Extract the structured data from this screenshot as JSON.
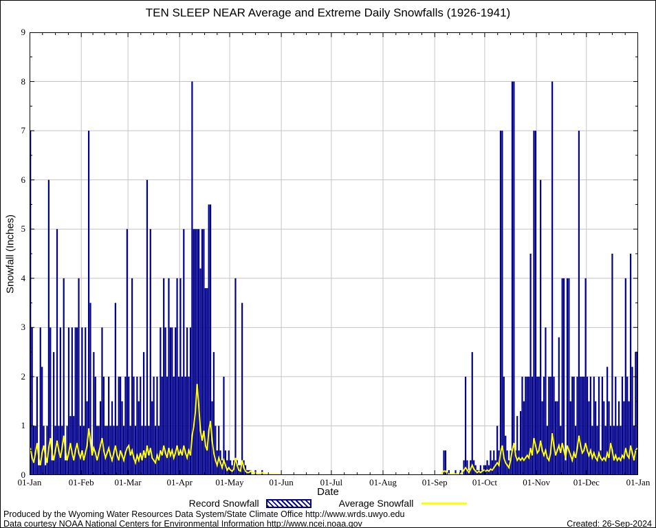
{
  "colors": {
    "bar": "#00008B",
    "average_line": "#FFFF00",
    "grid": "#C4C4C4",
    "axis": "#000000",
    "background": "#FFFFFF",
    "text": "#000000"
  },
  "footer": {
    "line1": "Produced by the Wyoming Water Resources Data System/State Climate Office http://www.wrds.uwyo.edu",
    "line2": "Data courtesy NOAA National Centers for Environmental Information http://www.ncei.noaa.gov",
    "created": "Created: 26-Sep-2024"
  },
  "chart_data": {
    "type": "bar",
    "title": "TEN SLEEP NEAR Average and Extreme Daily Snowfalls (1926-1941)",
    "xlabel": "Date",
    "ylabel": "Snowfall (Inches)",
    "ylim": [
      0,
      9
    ],
    "y_ticks": [
      0,
      1,
      2,
      3,
      4,
      5,
      6,
      7,
      8,
      9
    ],
    "x_tick_labels": [
      "01-Jan",
      "01-Feb",
      "01-Mar",
      "01-Apr",
      "01-May",
      "01-Jun",
      "01-Jul",
      "01-Aug",
      "01-Sep",
      "01-Oct",
      "01-Nov",
      "01-Dec",
      "01-Jan"
    ],
    "month_start_days": [
      0,
      31,
      59,
      90,
      120,
      151,
      181,
      212,
      243,
      273,
      304,
      334,
      365
    ],
    "days_in_year": 365,
    "grid": true,
    "legend_position": "bottom",
    "series": [
      {
        "name": "Record Snowfall",
        "type": "bar",
        "color": "#00008B",
        "values": [
          7,
          3,
          1,
          1,
          2,
          0.2,
          3,
          2.2,
          1,
          0.2,
          1,
          6,
          3,
          0.3,
          2.5,
          1,
          5,
          1,
          3,
          1,
          4,
          0.3,
          1,
          3,
          1.2,
          3,
          1.2,
          3,
          3,
          4,
          1,
          3,
          1,
          3,
          1.5,
          7,
          3.5,
          0.5,
          2.5,
          2,
          1,
          1,
          1.5,
          3,
          2,
          1,
          1,
          2,
          1,
          1.5,
          1,
          3.5,
          1,
          2,
          2,
          1.5,
          1,
          2,
          5,
          2,
          1,
          4,
          2,
          1,
          2,
          1.5,
          2,
          1,
          2.5,
          1,
          6,
          1,
          5,
          1.5,
          2,
          1,
          2,
          1,
          3,
          2,
          4,
          3,
          2,
          4,
          3,
          3,
          2,
          3,
          4,
          2,
          4,
          2,
          5,
          2,
          3,
          2,
          3,
          8,
          5,
          5,
          5,
          5,
          4.2,
          5,
          5,
          3.8,
          3.8,
          5.5,
          5.5,
          1.5,
          2.5,
          1,
          0.5,
          1,
          0.5,
          0.3,
          2,
          0.5,
          0.3,
          0.5,
          0.3,
          0.2,
          0.3,
          4,
          0.3,
          0.2,
          0.2,
          3.5,
          0.3,
          0.2,
          0.1,
          0.1,
          0.1,
          0,
          0,
          0.1,
          0,
          0,
          0,
          0.1,
          0,
          0,
          0,
          0,
          0,
          0,
          0,
          0,
          0,
          0,
          0,
          0,
          0,
          0,
          0,
          0,
          0,
          0,
          0,
          0,
          0,
          0,
          0,
          0,
          0,
          0,
          0,
          0,
          0,
          0,
          0,
          0,
          0,
          0,
          0,
          0,
          0,
          0,
          0,
          0,
          0,
          0,
          0,
          0,
          0,
          0,
          0,
          0,
          0,
          0,
          0,
          0,
          0,
          0,
          0,
          0,
          0,
          0,
          0,
          0,
          0,
          0,
          0,
          0,
          0,
          0,
          0,
          0,
          0,
          0,
          0,
          0,
          0,
          0,
          0,
          0,
          0,
          0,
          0,
          0,
          0,
          0,
          0,
          0,
          0,
          0,
          0,
          0,
          0,
          0,
          0,
          0,
          0,
          0,
          0,
          0,
          0,
          0,
          0,
          0,
          0,
          0,
          0,
          0,
          0,
          0,
          0,
          0,
          0.5,
          0.5,
          0,
          0.1,
          0,
          0,
          0,
          0.1,
          0,
          0,
          0.1,
          0,
          0.3,
          2,
          0.3,
          0.1,
          0.3,
          2.5,
          0.3,
          0.2,
          0.1,
          0.1,
          0.2,
          0.1,
          0.2,
          0.2,
          0.3,
          0.2,
          0.5,
          0.3,
          0.5,
          0.3,
          1,
          0.5,
          7,
          7,
          2,
          0.8,
          0.5,
          0.3,
          0.5,
          8,
          8,
          0.5,
          1.2,
          0.5,
          1.3,
          2,
          1.5,
          2,
          2,
          2,
          4.5,
          2,
          7,
          7,
          2,
          2,
          6,
          1.5,
          2,
          3,
          1,
          2,
          2,
          8,
          2,
          1.5,
          1.5,
          2.8,
          1,
          4,
          4,
          0.3,
          4,
          4,
          1.5,
          2,
          2,
          1,
          2,
          7,
          2,
          2,
          2,
          4,
          2,
          1.5,
          2,
          1,
          2,
          1.5,
          1,
          2,
          0.5,
          2,
          1.5,
          1,
          2.2,
          1.5,
          1,
          4.5,
          1,
          2,
          1,
          1.5,
          1,
          2,
          1.5,
          4,
          2,
          1.5,
          4.5,
          2.2,
          1,
          2.5,
          2.5
        ]
      },
      {
        "name": "Average Snowfall",
        "type": "line",
        "color": "#FFFF00",
        "values": [
          0.55,
          0.35,
          0.25,
          0.45,
          0.65,
          0.35,
          0.2,
          0.45,
          0.6,
          0.4,
          0.25,
          0.55,
          0.75,
          0.45,
          0.3,
          0.5,
          0.7,
          0.5,
          0.35,
          0.55,
          0.8,
          0.5,
          0.3,
          0.45,
          0.65,
          0.45,
          0.3,
          0.5,
          0.65,
          0.45,
          0.35,
          0.5,
          0.3,
          0.45,
          0.6,
          0.95,
          0.7,
          0.4,
          0.55,
          0.45,
          0.3,
          0.45,
          0.6,
          0.75,
          0.5,
          0.35,
          0.45,
          0.55,
          0.4,
          0.3,
          0.45,
          0.6,
          0.4,
          0.3,
          0.5,
          0.4,
          0.3,
          0.45,
          0.55,
          0.6,
          0.4,
          0.5,
          0.35,
          0.25,
          0.4,
          0.3,
          0.45,
          0.3,
          0.5,
          0.35,
          0.6,
          0.4,
          0.55,
          0.35,
          0.3,
          0.25,
          0.4,
          0.3,
          0.5,
          0.4,
          0.6,
          0.45,
          0.35,
          0.55,
          0.4,
          0.5,
          0.35,
          0.45,
          0.6,
          0.4,
          0.5,
          0.4,
          0.6,
          0.45,
          0.35,
          0.5,
          0.4,
          0.8,
          1.0,
          1.3,
          1.85,
          1.4,
          0.9,
          0.7,
          0.9,
          0.6,
          0.5,
          0.9,
          1.1,
          0.7,
          0.45,
          0.3,
          0.2,
          0.35,
          0.25,
          0.15,
          0.3,
          0.2,
          0.1,
          0.15,
          0.1,
          0.08,
          0.12,
          0.35,
          0.2,
          0.1,
          0.08,
          0.3,
          0.15,
          0.08,
          0.05,
          0.05,
          0.08,
          0.05,
          0.03,
          0.05,
          0.03,
          0.02,
          0.03,
          0.05,
          0.03,
          0.02,
          0.02,
          0.03,
          0.02,
          0.02,
          0.01,
          0.02,
          0.01,
          0.01,
          0.01,
          0,
          0,
          0,
          0,
          0,
          0,
          0,
          0,
          0,
          0,
          0,
          0,
          0,
          0,
          0,
          0,
          0,
          0,
          0,
          0,
          0,
          0,
          0,
          0,
          0,
          0,
          0,
          0,
          0,
          0,
          0,
          0,
          0,
          0,
          0,
          0,
          0,
          0,
          0,
          0,
          0,
          0,
          0,
          0,
          0,
          0,
          0,
          0,
          0,
          0,
          0,
          0,
          0,
          0,
          0,
          0,
          0,
          0,
          0,
          0,
          0,
          0,
          0,
          0,
          0,
          0,
          0,
          0,
          0,
          0,
          0,
          0,
          0,
          0,
          0,
          0,
          0,
          0,
          0,
          0,
          0,
          0,
          0,
          0,
          0,
          0,
          0,
          0,
          0,
          0,
          0,
          0,
          0,
          0,
          0,
          0,
          0.05,
          0.08,
          0.08,
          0.03,
          0.02,
          0.02,
          0.02,
          0.03,
          0.02,
          0.02,
          0.03,
          0.03,
          0.05,
          0.1,
          0.15,
          0.1,
          0.05,
          0.12,
          0.2,
          0.12,
          0.08,
          0.05,
          0.08,
          0.05,
          0.08,
          0.1,
          0.08,
          0.1,
          0.08,
          0.12,
          0.1,
          0.15,
          0.2,
          0.25,
          0.2,
          0.45,
          0.6,
          0.35,
          0.25,
          0.2,
          0.15,
          0.3,
          0.5,
          0.65,
          0.4,
          0.3,
          0.35,
          0.3,
          0.35,
          0.3,
          0.35,
          0.4,
          0.35,
          0.55,
          0.4,
          0.75,
          0.6,
          0.45,
          0.5,
          0.7,
          0.5,
          0.4,
          0.5,
          0.35,
          0.3,
          0.45,
          0.85,
          0.6,
          0.4,
          0.5,
          0.6,
          0.45,
          0.65,
          0.5,
          0.35,
          0.6,
          0.5,
          0.4,
          0.3,
          0.45,
          0.35,
          0.55,
          0.8,
          0.6,
          0.45,
          0.5,
          0.65,
          0.5,
          0.4,
          0.5,
          0.35,
          0.45,
          0.35,
          0.3,
          0.45,
          0.35,
          0.3,
          0.35,
          0.3,
          0.45,
          0.35,
          0.65,
          0.5,
          0.3,
          0.4,
          0.3,
          0.35,
          0.3,
          0.4,
          0.35,
          0.55,
          0.4,
          0.35,
          0.6,
          0.45,
          0.3,
          0.5,
          0.55
        ]
      }
    ]
  }
}
